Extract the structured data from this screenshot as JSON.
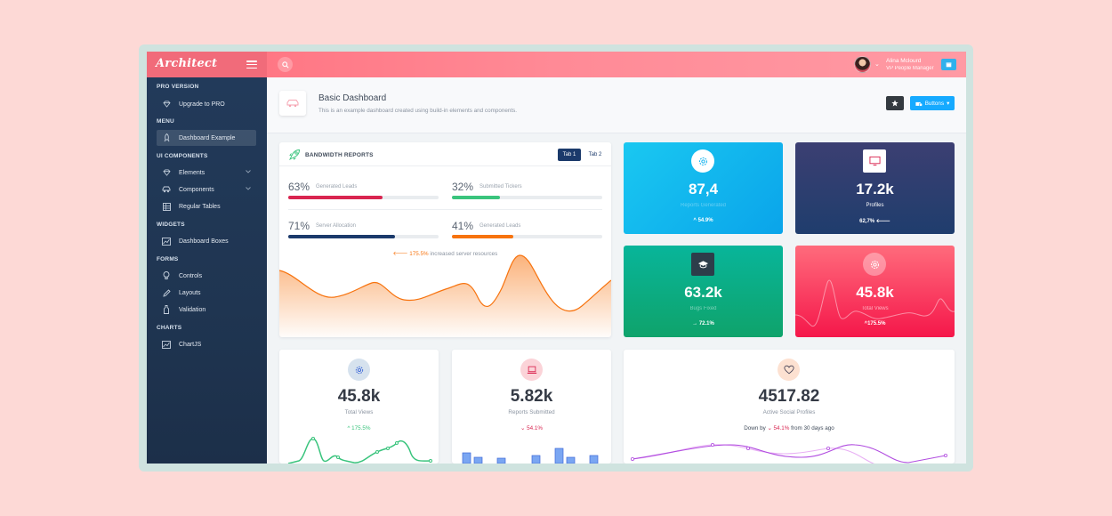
{
  "app": {
    "logo": "Architect"
  },
  "user": {
    "name": "Alina Mclourd",
    "role": "VP People Manager"
  },
  "sidebar": {
    "sections": [
      {
        "heading": "PRO VERSION",
        "items": [
          {
            "label": "Upgrade to PRO",
            "icon": "diamond-icon"
          }
        ]
      },
      {
        "heading": "MENU",
        "items": [
          {
            "label": "Dashboard Example",
            "icon": "rocket-icon",
            "active": true
          }
        ]
      },
      {
        "heading": "UI COMPONENTS",
        "items": [
          {
            "label": "Elements",
            "icon": "diamond-icon",
            "has_children": true
          },
          {
            "label": "Components",
            "icon": "car-icon",
            "has_children": true
          },
          {
            "label": "Regular Tables",
            "icon": "table-icon"
          }
        ]
      },
      {
        "heading": "WIDGETS",
        "items": [
          {
            "label": "Dashboard Boxes",
            "icon": "chart-icon"
          }
        ]
      },
      {
        "heading": "FORMS",
        "items": [
          {
            "label": "Controls",
            "icon": "lightbulb-icon"
          },
          {
            "label": "Layouts",
            "icon": "pencil-icon"
          },
          {
            "label": "Validation",
            "icon": "bottle-icon"
          }
        ]
      },
      {
        "heading": "CHARTS",
        "items": [
          {
            "label": "ChartJS",
            "icon": "chart-icon"
          }
        ]
      }
    ]
  },
  "page": {
    "title": "Basic Dashboard",
    "subtitle": "This is an example dashboard created using build-in elements and components.",
    "buttons_label": "Buttons"
  },
  "bandwidth": {
    "title": "BANDWIDTH REPORTS",
    "tabs": [
      "Tab 1",
      "Tab 2"
    ],
    "metrics": [
      {
        "pct": "63%",
        "label": "Generated Leads",
        "progress": 63,
        "color": "#d92550"
      },
      {
        "pct": "32%",
        "label": "Submitted Tickers",
        "progress": 32,
        "color": "#3ac47d"
      },
      {
        "pct": "71%",
        "label": "Server Allocation",
        "progress": 71,
        "color": "#1b3a6b"
      },
      {
        "pct": "41%",
        "label": "Generated Leads",
        "progress": 41,
        "color": "#f7730e"
      }
    ],
    "note_value": "175.5%",
    "note_text": "increased server resources"
  },
  "tiles": [
    {
      "value": "87,4",
      "label": "Reports Generated",
      "trend": "54.9%",
      "trend_dir": "up",
      "icon": "gear-icon"
    },
    {
      "value": "17.2k",
      "label": "Profiles",
      "trend": "62,7%",
      "trend_dir": "left",
      "icon": "monitor-icon"
    },
    {
      "value": "63.2k",
      "label": "Bugs Fixed",
      "trend": "72.1%",
      "trend_dir": "right",
      "icon": "graduation-cap-icon"
    },
    {
      "value": "45.8k",
      "label": "Total Views",
      "trend": "175.5%",
      "trend_dir": "up",
      "icon": "gear-icon"
    }
  ],
  "bottom_cards": [
    {
      "value": "45.8k",
      "label": "Total Views",
      "change": "175.5%",
      "change_dir": "up",
      "icon": "gear-icon",
      "accent": "#3ac47d"
    },
    {
      "value": "5.82k",
      "label": "Reports Submitted",
      "change": "54.1%",
      "change_dir": "down",
      "icon": "laptop-icon",
      "accent": "#d92550"
    },
    {
      "value": "4517.82",
      "label": "Active Social Profiles",
      "change_prefix": "Down by",
      "change": "54.1%",
      "change_suffix": "from 30 days ago",
      "change_dir": "down",
      "icon": "heart-icon",
      "accent": "#d92550"
    }
  ]
}
